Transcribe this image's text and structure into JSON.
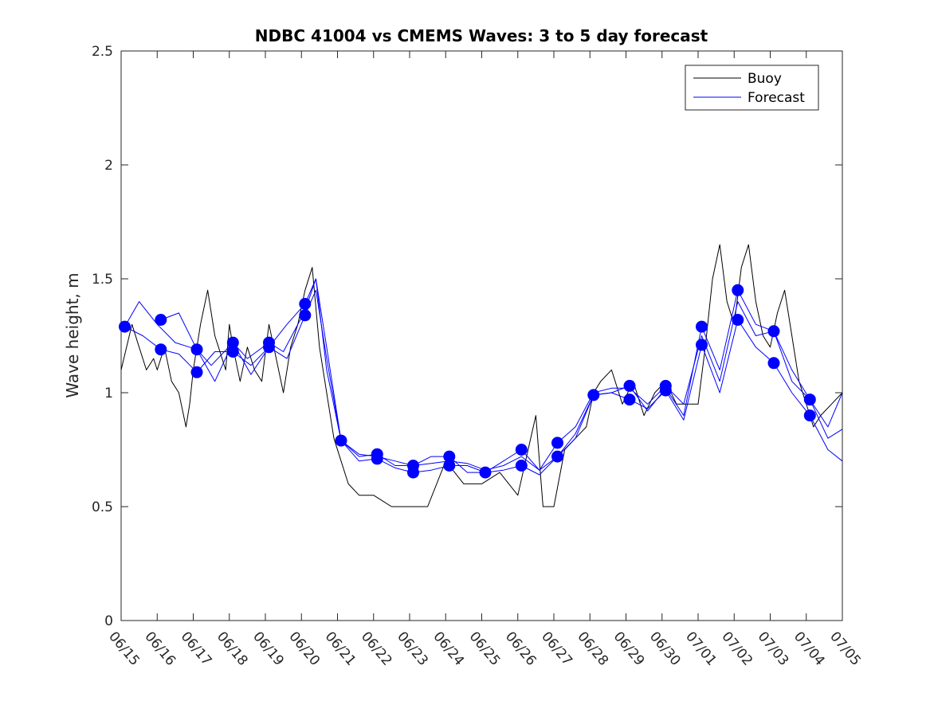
{
  "chart_data": {
    "type": "line",
    "title": "NDBC 41004 vs CMEMS Waves: 3 to 5 day forecast",
    "ylabel": "Wave height, m",
    "xlabel": "",
    "xlim": [
      "06/15",
      "07/05"
    ],
    "ylim": [
      0,
      2.5
    ],
    "yticks": [
      0,
      0.5,
      1,
      1.5,
      2,
      2.5
    ],
    "ytick_labels": [
      "0",
      "0.5",
      "1",
      "1.5",
      "2",
      "2.5"
    ],
    "xtick_labels": [
      "06/15",
      "06/16",
      "06/17",
      "06/18",
      "06/19",
      "06/20",
      "06/21",
      "06/22",
      "06/23",
      "06/24",
      "06/25",
      "06/26",
      "06/27",
      "06/28",
      "06/29",
      "06/30",
      "07/01",
      "07/02",
      "07/03",
      "07/04",
      "07/05"
    ],
    "grid": false,
    "legend_position": "top-right",
    "legend": [
      {
        "label": "Buoy",
        "color": "#000000"
      },
      {
        "label": "Forecast",
        "color": "#0000ff"
      }
    ],
    "series": [
      {
        "name": "Buoy",
        "color": "#000000",
        "x": [
          0,
          0.3,
          0.5,
          0.7,
          0.9,
          1.0,
          1.2,
          1.4,
          1.6,
          1.8,
          1.9,
          2.0,
          2.2,
          2.4,
          2.6,
          2.7,
          2.9,
          3.0,
          3.1,
          3.3,
          3.5,
          3.7,
          3.9,
          4.1,
          4.3,
          4.5,
          4.7,
          4.9,
          5.1,
          5.3,
          5.5,
          5.7,
          5.9,
          6.1,
          6.3,
          6.6,
          7.0,
          7.5,
          8.0,
          8.5,
          9.0,
          9.5,
          10.0,
          10.5,
          11.0,
          11.5,
          11.7,
          12.0,
          12.3,
          12.6,
          12.9,
          13.1,
          13.3,
          13.6,
          13.9,
          14.2,
          14.5,
          14.8,
          15.1,
          15.4,
          15.7,
          16.0,
          16.2,
          16.4,
          16.6,
          16.8,
          17.0,
          17.2,
          17.4,
          17.6,
          17.8,
          18.0,
          18.2,
          18.4,
          18.6,
          18.8,
          19.0,
          19.2,
          19.4,
          19.7,
          20.0
        ],
        "y": [
          1.1,
          1.3,
          1.2,
          1.1,
          1.15,
          1.1,
          1.2,
          1.05,
          1.0,
          0.85,
          0.95,
          1.1,
          1.3,
          1.45,
          1.25,
          1.2,
          1.1,
          1.3,
          1.2,
          1.05,
          1.2,
          1.1,
          1.05,
          1.3,
          1.15,
          1.0,
          1.2,
          1.3,
          1.45,
          1.55,
          1.2,
          1.0,
          0.8,
          0.7,
          0.6,
          0.55,
          0.55,
          0.5,
          0.5,
          0.5,
          0.7,
          0.6,
          0.6,
          0.65,
          0.55,
          0.9,
          0.5,
          0.5,
          0.75,
          0.8,
          0.85,
          1.0,
          1.05,
          1.1,
          0.95,
          1.05,
          0.9,
          1.0,
          1.05,
          0.95,
          0.95,
          0.95,
          1.2,
          1.5,
          1.65,
          1.4,
          1.3,
          1.55,
          1.65,
          1.4,
          1.25,
          1.2,
          1.35,
          1.45,
          1.25,
          1.05,
          0.95,
          0.85,
          0.9,
          0.95,
          1.0
        ]
      },
      {
        "name": "Forecast",
        "color": "#0000ff",
        "x": [
          0.1,
          0.5,
          1.0,
          1.5,
          1.9,
          2.1,
          2.5,
          3.1,
          3.5,
          4.1,
          4.5,
          5.1,
          5.4,
          5.7,
          6.1,
          6.6,
          7.1,
          7.6,
          8.1,
          8.6,
          9.1,
          9.6,
          10.1,
          10.6,
          11.1,
          11.6,
          12.1,
          12.6,
          13.1,
          13.6,
          14.1,
          14.6,
          15.1,
          15.6,
          16.1,
          16.6,
          17.1,
          17.6,
          18.1,
          18.6,
          19.1,
          19.6,
          20.0
        ],
        "y": [
          1.29,
          1.4,
          1.3,
          1.22,
          1.2,
          1.19,
          1.12,
          1.22,
          1.15,
          1.22,
          1.18,
          1.36,
          1.5,
          1.2,
          0.79,
          0.73,
          0.72,
          0.7,
          0.68,
          0.69,
          0.7,
          0.69,
          0.66,
          0.68,
          0.72,
          0.66,
          0.78,
          0.85,
          1.0,
          1.02,
          1.02,
          0.95,
          1.03,
          0.95,
          1.25,
          1.05,
          1.4,
          1.25,
          1.27,
          1.1,
          0.97,
          0.85,
          1.0
        ]
      },
      {
        "name": "",
        "color": "#0000ff",
        "x": [
          0.1,
          0.6,
          1.1,
          1.6,
          2.1,
          2.6,
          3.1,
          3.6,
          4.1,
          4.6,
          5.1,
          5.4,
          5.7,
          6.1,
          6.6,
          7.1,
          7.6,
          8.1,
          8.6,
          9.1,
          9.6,
          10.1,
          10.6,
          11.1,
          11.6,
          12.1,
          12.6,
          13.1,
          13.6,
          14.1,
          14.6,
          15.1,
          15.6,
          16.1,
          16.6,
          17.1,
          17.6,
          18.1,
          18.6,
          19.1,
          19.6,
          20.0
        ],
        "y": [
          1.29,
          1.25,
          1.19,
          1.17,
          1.09,
          1.18,
          1.18,
          1.12,
          1.2,
          1.15,
          1.34,
          1.45,
          1.15,
          0.79,
          0.7,
          0.71,
          0.67,
          0.65,
          0.66,
          0.68,
          0.68,
          0.65,
          0.66,
          0.68,
          0.64,
          0.72,
          0.82,
          0.99,
          1.0,
          0.97,
          0.93,
          1.01,
          0.88,
          1.21,
          1.0,
          1.32,
          1.2,
          1.13,
          1.0,
          0.9,
          0.75,
          0.7
        ]
      },
      {
        "name": "",
        "color": "#0000ff",
        "x": [
          1.1,
          1.6,
          2.1,
          2.6,
          3.1,
          3.6,
          4.1,
          4.6,
          5.1,
          5.4,
          5.7,
          6.1,
          6.6,
          7.1,
          7.6,
          8.1,
          8.6,
          9.1,
          9.6,
          10.1,
          10.6,
          11.1,
          11.6,
          12.1,
          12.6,
          13.1,
          13.6,
          14.1,
          14.6,
          15.1,
          15.6,
          16.1,
          16.6,
          17.1,
          17.6,
          18.1,
          18.6,
          19.1,
          19.6,
          20.0
        ],
        "y": [
          1.32,
          1.35,
          1.19,
          1.05,
          1.22,
          1.08,
          1.2,
          1.3,
          1.39,
          1.5,
          1.1,
          0.79,
          0.72,
          0.73,
          0.68,
          0.68,
          0.72,
          0.72,
          0.65,
          0.65,
          0.7,
          0.75,
          0.66,
          0.72,
          0.8,
          0.99,
          1.0,
          1.03,
          0.92,
          1.02,
          0.9,
          1.29,
          1.1,
          1.45,
          1.3,
          1.27,
          1.05,
          0.97,
          0.8,
          0.84
        ]
      }
    ],
    "markers": {
      "color": "#0000ff",
      "points": [
        [
          0.1,
          1.29
        ],
        [
          1.1,
          1.32
        ],
        [
          1.1,
          1.19
        ],
        [
          2.1,
          1.19
        ],
        [
          2.1,
          1.09
        ],
        [
          3.1,
          1.22
        ],
        [
          3.1,
          1.18
        ],
        [
          4.1,
          1.22
        ],
        [
          4.1,
          1.2
        ],
        [
          5.1,
          1.39
        ],
        [
          5.1,
          1.34
        ],
        [
          6.1,
          0.79
        ],
        [
          7.1,
          0.73
        ],
        [
          7.1,
          0.71
        ],
        [
          8.1,
          0.68
        ],
        [
          8.1,
          0.65
        ],
        [
          9.1,
          0.72
        ],
        [
          9.1,
          0.68
        ],
        [
          10.1,
          0.65
        ],
        [
          11.1,
          0.75
        ],
        [
          11.1,
          0.68
        ],
        [
          12.1,
          0.78
        ],
        [
          12.1,
          0.72
        ],
        [
          13.1,
          0.99
        ],
        [
          14.1,
          1.03
        ],
        [
          14.1,
          0.97
        ],
        [
          15.1,
          1.03
        ],
        [
          15.1,
          1.01
        ],
        [
          16.1,
          1.29
        ],
        [
          16.1,
          1.21
        ],
        [
          17.1,
          1.45
        ],
        [
          17.1,
          1.32
        ],
        [
          18.1,
          1.27
        ],
        [
          18.1,
          1.13
        ],
        [
          19.1,
          0.97
        ],
        [
          19.1,
          0.9
        ]
      ]
    }
  }
}
